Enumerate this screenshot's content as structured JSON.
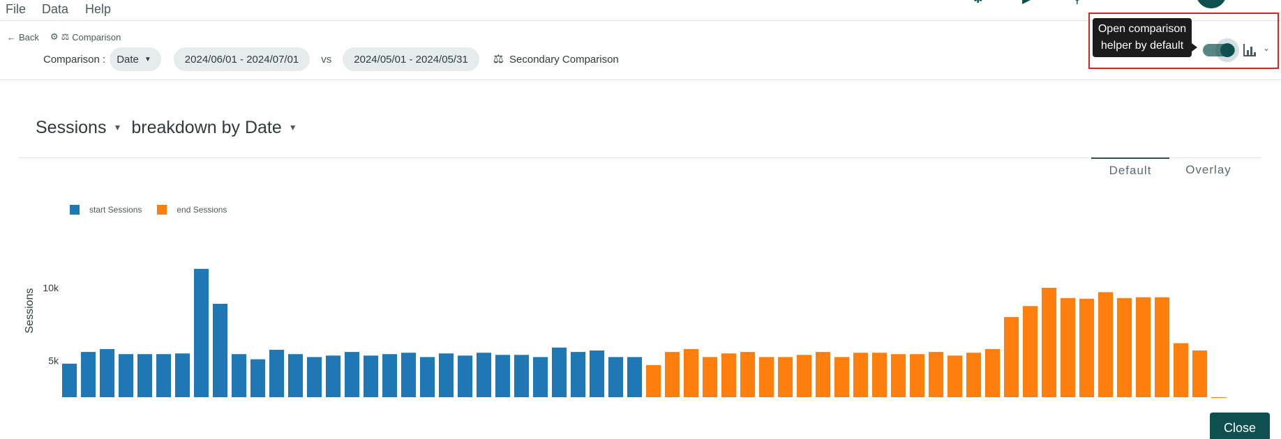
{
  "menu": {
    "file": "File",
    "data": "Data",
    "help": "Help"
  },
  "breadcrumb": {
    "back": "Back",
    "current": "Comparison"
  },
  "comparison": {
    "label": "Comparison :",
    "dimension": "Date",
    "range_primary": "2024/06/01 - 2024/07/01",
    "vs": "vs",
    "range_secondary": "2024/05/01 - 2024/05/31",
    "secondary_label": "Secondary Comparison"
  },
  "helper": {
    "tooltip_line1": "Open comparison",
    "tooltip_line2": "helper by default",
    "toggle_on": true
  },
  "title": {
    "metric": "Sessions",
    "breakdown": "breakdown by Date"
  },
  "view_tabs": {
    "default": "Default",
    "overlay": "Overlay",
    "active": "Default"
  },
  "colors": {
    "start": "#1f77b4",
    "end": "#ff7f0e",
    "accent": "#0e4f4f",
    "highlight": "#e02020"
  },
  "chart_data": {
    "type": "bar",
    "ylabel": "Sessions",
    "ylim": [
      2000,
      12500
    ],
    "yticks": [
      5000,
      10000
    ],
    "ytick_labels": [
      "5k",
      "10k"
    ],
    "legend": "top-left",
    "series": [
      {
        "name": "start Sessions",
        "values": [
          4800,
          5600,
          5800,
          5450,
          5450,
          5450,
          5500,
          11300,
          8900,
          5450,
          5100,
          5750,
          5450,
          5250,
          5350,
          5600,
          5350,
          5450,
          5550,
          5250,
          5500,
          5350,
          5550,
          5400,
          5400,
          5250,
          5900,
          5600,
          5700,
          5250,
          5250
        ]
      },
      {
        "name": "end Sessions",
        "values": [
          4700,
          5600,
          5800,
          5250,
          5500,
          5600,
          5250,
          5250,
          5400,
          5600,
          5250,
          5550,
          5550,
          5450,
          5450,
          5600,
          5350,
          5550,
          5800,
          8000,
          8750,
          10000,
          9300,
          9250,
          9700,
          9300,
          9350,
          9350,
          6200,
          5700,
          2500
        ]
      }
    ]
  },
  "close_label": "Close"
}
